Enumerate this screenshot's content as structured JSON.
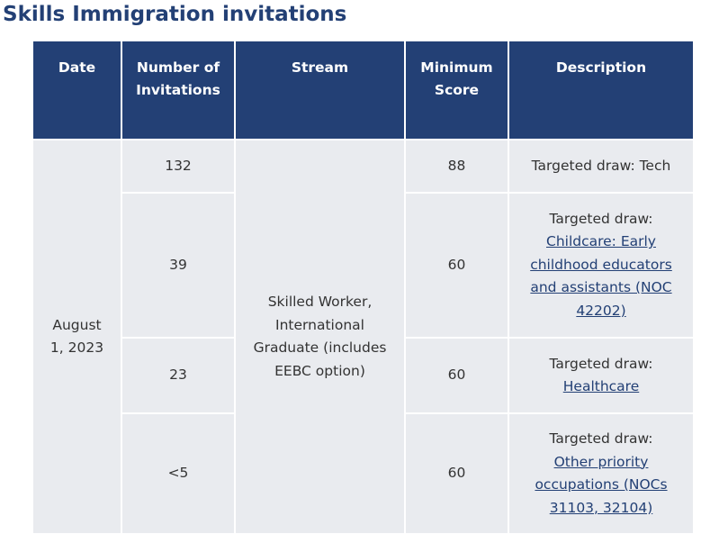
{
  "page": {
    "title": "Skills Immigration invitations"
  },
  "table": {
    "headers": {
      "date": "Date",
      "invitations": "Number of Invitations",
      "stream": "Stream",
      "minimum_score": "Minimum Score",
      "description": "Description"
    },
    "date": "August 1, 2023",
    "stream": "Skilled Worker, International Graduate (includes EEBC option)",
    "rows": [
      {
        "invitations": "132",
        "minimum_score": "88",
        "description_prefix": "Targeted draw: Tech",
        "description_link": ""
      },
      {
        "invitations": "39",
        "minimum_score": "60",
        "description_prefix": "Targeted draw:",
        "description_link": "Childcare: Early childhood educators and assistants (NOC 42202)"
      },
      {
        "invitations": "23",
        "minimum_score": "60",
        "description_prefix": "Targeted draw:",
        "description_link": "Healthcare"
      },
      {
        "invitations": "<5",
        "minimum_score": "60",
        "description_prefix": "Targeted draw:",
        "description_link": "Other priority occupations (NOCs 31103, 32104)"
      }
    ]
  },
  "colors": {
    "header_background": "#234075",
    "title_text": "#234075",
    "cell_background": "#e9ebef",
    "link": "#234075"
  }
}
